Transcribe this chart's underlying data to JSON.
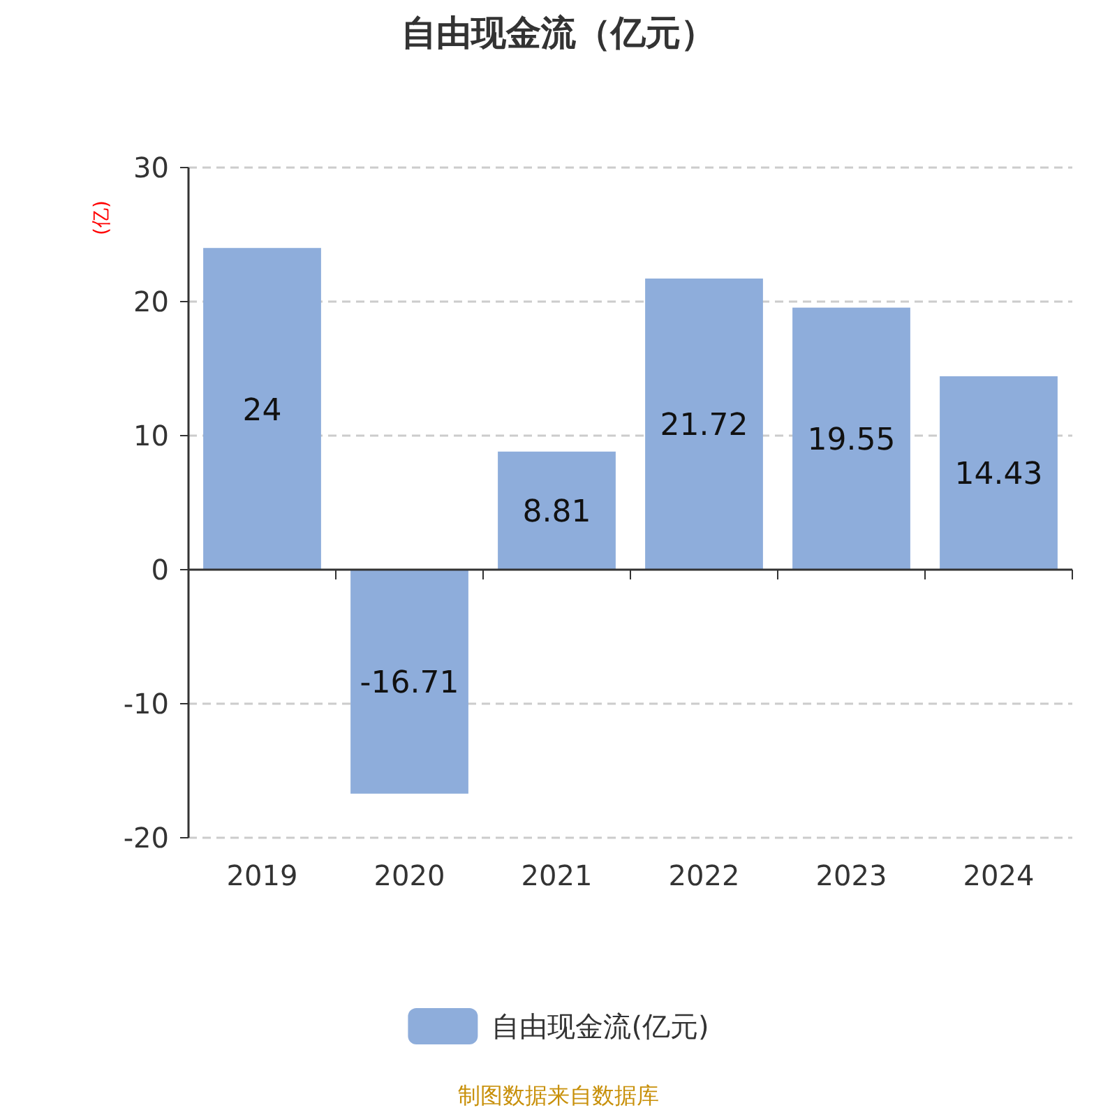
{
  "chart_data": {
    "type": "bar",
    "title": "自由现金流（亿元）",
    "ylabel": "(亿)",
    "categories": [
      "2019",
      "2020",
      "2021",
      "2022",
      "2023",
      "2024"
    ],
    "series": [
      {
        "name": "自由现金流(亿元)",
        "color": "#8eaddb",
        "values": [
          24,
          -16.71,
          8.81,
          21.72,
          19.55,
          14.43
        ]
      }
    ],
    "ylim": [
      -20,
      30
    ],
    "yticks": [
      -20,
      -10,
      0,
      10,
      20,
      30
    ],
    "grid": "y",
    "data_labels": true,
    "legend": "bottom",
    "annotations": [
      "制图数据来自数据库"
    ]
  }
}
